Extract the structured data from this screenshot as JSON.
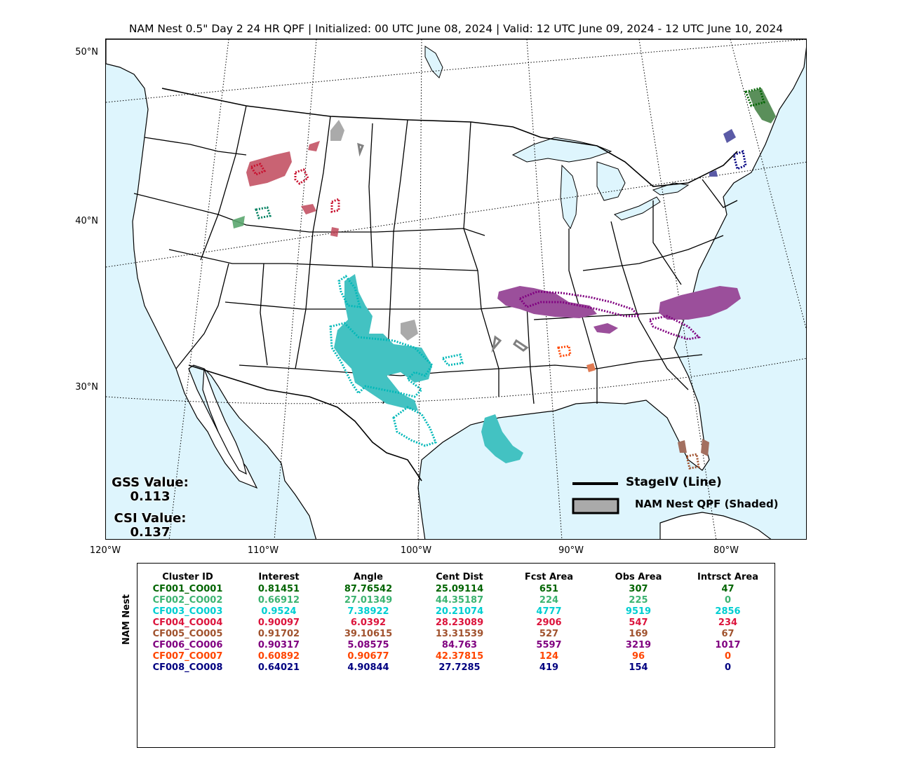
{
  "title": "NAM Nest 0.5\" Day 2 24 HR QPF | Initialized: 00 UTC June 08, 2024 | Valid: 12 UTC June 09, 2024 - 12 UTC June 10, 2024",
  "lat_labels": [
    "50°N",
    "40°N",
    "30°N"
  ],
  "lon_labels": [
    "120°W",
    "110°W",
    "100°W",
    "90°W",
    "80°W"
  ],
  "stats": {
    "gss_label": "GSS Value:",
    "gss_value": "0.113",
    "csi_label": "CSI Value:",
    "csi_value": "0.137"
  },
  "legend": {
    "line_label": "StageIV (Line)",
    "shaded_label": "NAM Nest QPF (Shaded)"
  },
  "table": {
    "ylabel": "NAM Nest",
    "headers": [
      "Cluster ID",
      "Interest",
      "Angle",
      "Cent Dist",
      "Fcst Area",
      "Obs Area",
      "Intrsct Area"
    ],
    "rows": [
      {
        "color": "#006400",
        "cells": [
          "CF001_CO001",
          "0.81451",
          "87.76542",
          "25.09114",
          "651",
          "307",
          "47"
        ]
      },
      {
        "color": "#3cb371",
        "cells": [
          "CF002_CO002",
          "0.66912",
          "27.01349",
          "44.35187",
          "224",
          "225",
          "0"
        ]
      },
      {
        "color": "#00ced1",
        "cells": [
          "CF003_CO003",
          "0.9524",
          "7.38922",
          "20.21074",
          "4777",
          "9519",
          "2856"
        ]
      },
      {
        "color": "#dc143c",
        "cells": [
          "CF004_CO004",
          "0.90097",
          "6.0392",
          "28.23089",
          "2906",
          "547",
          "234"
        ]
      },
      {
        "color": "#a0522d",
        "cells": [
          "CF005_CO005",
          "0.91702",
          "39.10615",
          "13.31539",
          "527",
          "169",
          "67"
        ]
      },
      {
        "color": "#800080",
        "cells": [
          "CF006_CO006",
          "0.90317",
          "5.08575",
          "84.763",
          "5597",
          "3219",
          "1017"
        ]
      },
      {
        "color": "#ff4500",
        "cells": [
          "CF007_CO007",
          "0.60892",
          "0.90677",
          "42.37815",
          "124",
          "96",
          "0"
        ]
      },
      {
        "color": "#000080",
        "cells": [
          "CF008_CO008",
          "0.64021",
          "4.90844",
          "27.7285",
          "419",
          "154",
          "0"
        ]
      }
    ]
  },
  "colors": {
    "water": "#def5fd",
    "land": "#ffffff",
    "cluster_green": "#006400",
    "cluster_seagreen": "#3cb371",
    "cluster_cyan": "#00ced1",
    "cluster_crimson": "#dc143c",
    "cluster_sienna": "#a0522d",
    "cluster_purple": "#800080",
    "cluster_orange": "#ff4500",
    "cluster_navy": "#000080",
    "unmatched": "#a9a9a9"
  }
}
